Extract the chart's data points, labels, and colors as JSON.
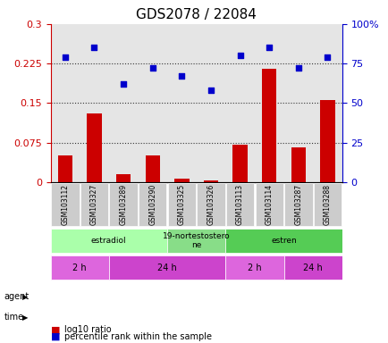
{
  "title": "GDS2078 / 22084",
  "samples": [
    "GSM103112",
    "GSM103327",
    "GSM103289",
    "GSM103290",
    "GSM103325",
    "GSM103326",
    "GSM103113",
    "GSM103114",
    "GSM103287",
    "GSM103288"
  ],
  "log10_ratio": [
    0.05,
    0.13,
    0.015,
    0.05,
    0.007,
    0.003,
    0.07,
    0.215,
    0.065,
    0.155
  ],
  "percentile_rank": [
    79,
    85,
    62,
    72,
    67,
    58,
    80,
    85,
    72,
    79
  ],
  "bar_color": "#cc0000",
  "dot_color": "#0000cc",
  "yticks_left": [
    0,
    0.075,
    0.15,
    0.225,
    0.3
  ],
  "yticks_right": [
    0,
    25,
    50,
    75,
    100
  ],
  "ylim_left": [
    0,
    0.3
  ],
  "ylim_right": [
    0,
    100
  ],
  "agent_labels": [
    {
      "text": "estradiol",
      "start": 0,
      "end": 4,
      "color": "#aaffaa"
    },
    {
      "text": "19-nortestostero\nne",
      "start": 4,
      "end": 6,
      "color": "#88dd88"
    },
    {
      "text": "estren",
      "start": 6,
      "end": 10,
      "color": "#55cc55"
    }
  ],
  "time_labels": [
    {
      "text": "2 h",
      "start": 0,
      "end": 2,
      "color": "#dd66dd"
    },
    {
      "text": "24 h",
      "start": 2,
      "end": 6,
      "color": "#cc44cc"
    },
    {
      "text": "2 h",
      "start": 6,
      "end": 8,
      "color": "#dd66dd"
    },
    {
      "text": "24 h",
      "start": 8,
      "end": 10,
      "color": "#cc44cc"
    }
  ],
  "dotted_line_color": "#333333",
  "background_color": "#ffffff",
  "sample_bg_color": "#cccccc"
}
